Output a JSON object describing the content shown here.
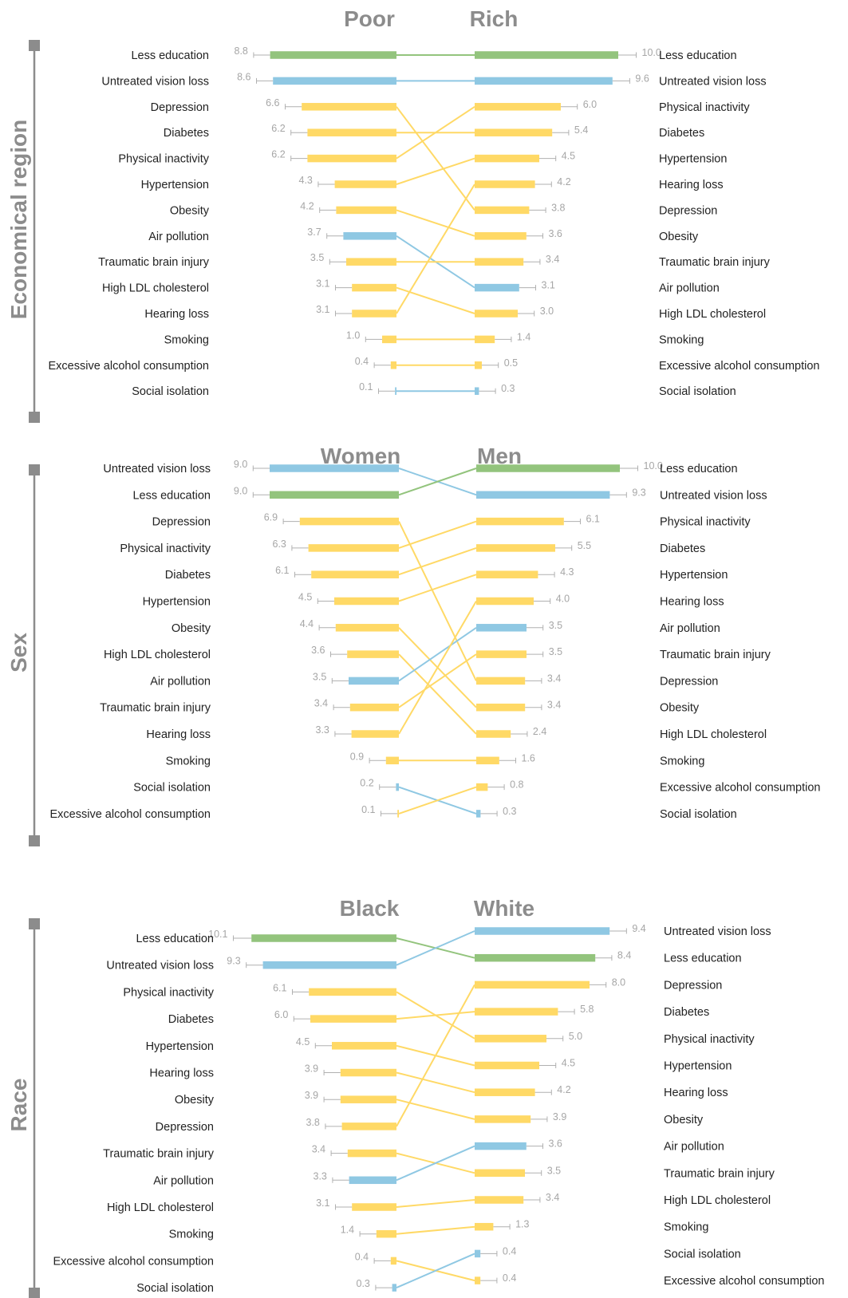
{
  "colors": {
    "education": "#93c47d",
    "vision_pollution_isolation": "#8fc8e3",
    "other": "#ffd966",
    "text": "#222222",
    "value_text": "#a6a6a6",
    "title": "#8c8c8c",
    "axis": "#8c8c8c",
    "error_bar": "#b0b0b0"
  },
  "chart_data": [
    {
      "type": "bar",
      "section": "Economical region",
      "left_title": "Poor",
      "right_title": "Rich",
      "left": [
        {
          "label": "Less education",
          "value": 8.8,
          "color": "education"
        },
        {
          "label": "Untreated vision loss",
          "value": 8.6,
          "color": "vision_pollution_isolation"
        },
        {
          "label": "Depression",
          "value": 6.6,
          "color": "other"
        },
        {
          "label": "Diabetes",
          "value": 6.2,
          "color": "other"
        },
        {
          "label": "Physical inactivity",
          "value": 6.2,
          "color": "other"
        },
        {
          "label": "Hypertension",
          "value": 4.3,
          "color": "other"
        },
        {
          "label": "Obesity",
          "value": 4.2,
          "color": "other"
        },
        {
          "label": "Air pollution",
          "value": 3.7,
          "color": "vision_pollution_isolation"
        },
        {
          "label": "Traumatic brain injury",
          "value": 3.5,
          "color": "other"
        },
        {
          "label": "High LDL cholesterol",
          "value": 3.1,
          "color": "other"
        },
        {
          "label": "Hearing loss",
          "value": 3.1,
          "color": "other"
        },
        {
          "label": "Smoking",
          "value": 1.0,
          "color": "other"
        },
        {
          "label": "Excessive alcohol consumption",
          "value": 0.4,
          "color": "other"
        },
        {
          "label": "Social isolation",
          "value": 0.1,
          "color": "vision_pollution_isolation"
        }
      ],
      "right": [
        {
          "label": "Less education",
          "value": 10.0,
          "color": "education"
        },
        {
          "label": "Untreated vision loss",
          "value": 9.6,
          "color": "vision_pollution_isolation"
        },
        {
          "label": "Physical inactivity",
          "value": 6.0,
          "color": "other"
        },
        {
          "label": "Diabetes",
          "value": 5.4,
          "color": "other"
        },
        {
          "label": "Hypertension",
          "value": 4.5,
          "color": "other"
        },
        {
          "label": "Hearing loss",
          "value": 4.2,
          "color": "other"
        },
        {
          "label": "Depression",
          "value": 3.8,
          "color": "other"
        },
        {
          "label": "Obesity",
          "value": 3.6,
          "color": "other"
        },
        {
          "label": "Traumatic brain injury",
          "value": 3.4,
          "color": "other"
        },
        {
          "label": "Air pollution",
          "value": 3.1,
          "color": "vision_pollution_isolation"
        },
        {
          "label": "High LDL cholesterol",
          "value": 3.0,
          "color": "other"
        },
        {
          "label": "Smoking",
          "value": 1.4,
          "color": "other"
        },
        {
          "label": "Excessive alcohol consumption",
          "value": 0.5,
          "color": "other"
        },
        {
          "label": "Social isolation",
          "value": 0.3,
          "color": "vision_pollution_isolation"
        }
      ]
    },
    {
      "type": "bar",
      "section": "Sex",
      "left_title": "Women",
      "right_title": "Men",
      "left": [
        {
          "label": "Untreated vision loss",
          "value": 9.0,
          "color": "vision_pollution_isolation"
        },
        {
          "label": "Less education",
          "value": 9.0,
          "color": "education"
        },
        {
          "label": "Depression",
          "value": 6.9,
          "color": "other"
        },
        {
          "label": "Physical inactivity",
          "value": 6.3,
          "color": "other"
        },
        {
          "label": "Diabetes",
          "value": 6.1,
          "color": "other"
        },
        {
          "label": "Hypertension",
          "value": 4.5,
          "color": "other"
        },
        {
          "label": "Obesity",
          "value": 4.4,
          "color": "other"
        },
        {
          "label": "High LDL cholesterol",
          "value": 3.6,
          "color": "other"
        },
        {
          "label": "Air pollution",
          "value": 3.5,
          "color": "vision_pollution_isolation"
        },
        {
          "label": "Traumatic brain injury",
          "value": 3.4,
          "color": "other"
        },
        {
          "label": "Hearing loss",
          "value": 3.3,
          "color": "other"
        },
        {
          "label": "Smoking",
          "value": 0.9,
          "color": "other"
        },
        {
          "label": "Social isolation",
          "value": 0.2,
          "color": "vision_pollution_isolation"
        },
        {
          "label": "Excessive alcohol consumption",
          "value": 0.1,
          "color": "other"
        }
      ],
      "right": [
        {
          "label": "Less education",
          "value": 10.0,
          "color": "education"
        },
        {
          "label": "Untreated vision loss",
          "value": 9.3,
          "color": "vision_pollution_isolation"
        },
        {
          "label": "Physical inactivity",
          "value": 6.1,
          "color": "other"
        },
        {
          "label": "Diabetes",
          "value": 5.5,
          "color": "other"
        },
        {
          "label": "Hypertension",
          "value": 4.3,
          "color": "other"
        },
        {
          "label": "Hearing loss",
          "value": 4.0,
          "color": "other"
        },
        {
          "label": "Air pollution",
          "value": 3.5,
          "color": "vision_pollution_isolation"
        },
        {
          "label": "Traumatic brain injury",
          "value": 3.5,
          "color": "other"
        },
        {
          "label": "Depression",
          "value": 3.4,
          "color": "other"
        },
        {
          "label": "Obesity",
          "value": 3.4,
          "color": "other"
        },
        {
          "label": "High LDL cholesterol",
          "value": 2.4,
          "color": "other"
        },
        {
          "label": "Smoking",
          "value": 1.6,
          "color": "other"
        },
        {
          "label": "Excessive alcohol consumption",
          "value": 0.8,
          "color": "other"
        },
        {
          "label": "Social isolation",
          "value": 0.3,
          "color": "vision_pollution_isolation"
        }
      ]
    },
    {
      "type": "bar",
      "section": "Race",
      "left_title": "Black",
      "right_title": "White",
      "left": [
        {
          "label": "Less education",
          "value": 10.1,
          "color": "education"
        },
        {
          "label": "Untreated vision loss",
          "value": 9.3,
          "color": "vision_pollution_isolation"
        },
        {
          "label": "Physical inactivity",
          "value": 6.1,
          "color": "other"
        },
        {
          "label": "Diabetes",
          "value": 6.0,
          "color": "other"
        },
        {
          "label": "Hypertension",
          "value": 4.5,
          "color": "other"
        },
        {
          "label": "Hearing loss",
          "value": 3.9,
          "color": "other"
        },
        {
          "label": "Obesity",
          "value": 3.9,
          "color": "other"
        },
        {
          "label": "Depression",
          "value": 3.8,
          "color": "other"
        },
        {
          "label": "Traumatic brain injury",
          "value": 3.4,
          "color": "other"
        },
        {
          "label": "Air pollution",
          "value": 3.3,
          "color": "vision_pollution_isolation"
        },
        {
          "label": "High LDL cholesterol",
          "value": 3.1,
          "color": "other"
        },
        {
          "label": "Smoking",
          "value": 1.4,
          "color": "other"
        },
        {
          "label": "Excessive alcohol consumption",
          "value": 0.4,
          "color": "other"
        },
        {
          "label": "Social isolation",
          "value": 0.3,
          "color": "vision_pollution_isolation"
        }
      ],
      "right": [
        {
          "label": "Untreated vision loss",
          "value": 9.4,
          "color": "vision_pollution_isolation"
        },
        {
          "label": "Less education",
          "value": 8.4,
          "color": "education"
        },
        {
          "label": "Depression",
          "value": 8.0,
          "color": "other"
        },
        {
          "label": "Diabetes",
          "value": 5.8,
          "color": "other"
        },
        {
          "label": "Physical inactivity",
          "value": 5.0,
          "color": "other"
        },
        {
          "label": "Hypertension",
          "value": 4.5,
          "color": "other"
        },
        {
          "label": "Hearing loss",
          "value": 4.2,
          "color": "other"
        },
        {
          "label": "Obesity",
          "value": 3.9,
          "color": "other"
        },
        {
          "label": "Air pollution",
          "value": 3.6,
          "color": "vision_pollution_isolation"
        },
        {
          "label": "Traumatic brain injury",
          "value": 3.5,
          "color": "other"
        },
        {
          "label": "High LDL cholesterol",
          "value": 3.4,
          "color": "other"
        },
        {
          "label": "Smoking",
          "value": 1.3,
          "color": "other"
        },
        {
          "label": "Social isolation",
          "value": 0.4,
          "color": "vision_pollution_isolation"
        },
        {
          "label": "Excessive alcohol consumption",
          "value": 0.4,
          "color": "other"
        }
      ]
    }
  ]
}
